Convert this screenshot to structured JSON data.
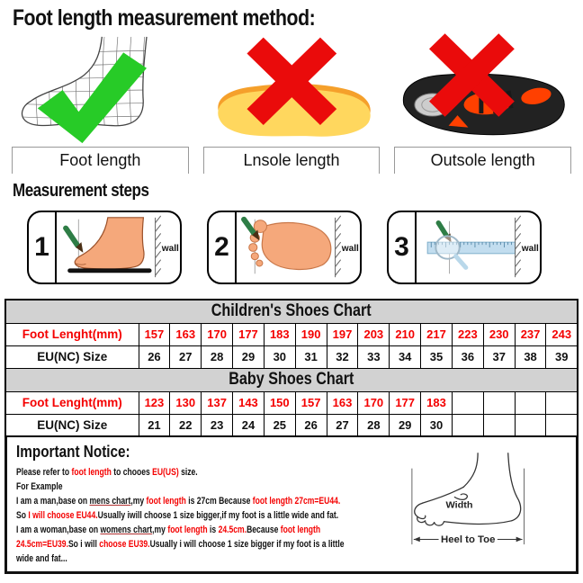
{
  "page": {
    "title": "Foot length measurement method:",
    "steps_heading": "Measurement steps"
  },
  "method_panels": [
    {
      "label": "Foot length",
      "mark": "green-check"
    },
    {
      "label": "Lnsole length",
      "mark": "red-x"
    },
    {
      "label": "Outsole length",
      "mark": "red-x"
    }
  ],
  "steps": [
    {
      "number": "1",
      "wall_label": "wall"
    },
    {
      "number": "2",
      "wall_label": "wall"
    },
    {
      "number": "3",
      "wall_label": "wall"
    }
  ],
  "charts": [
    {
      "title": "Children's Shoes Chart",
      "rows": [
        {
          "header": "Foot Lenght(mm)",
          "red": true,
          "values": [
            "157",
            "163",
            "170",
            "177",
            "183",
            "190",
            "197",
            "203",
            "210",
            "217",
            "223",
            "230",
            "237",
            "243"
          ]
        },
        {
          "header": "EU(NC) Size",
          "red": false,
          "values": [
            "26",
            "27",
            "28",
            "29",
            "30",
            "31",
            "32",
            "33",
            "34",
            "35",
            "36",
            "37",
            "38",
            "39"
          ]
        }
      ]
    },
    {
      "title": "Baby Shoes Chart",
      "rows": [
        {
          "header": "Foot Lenght(mm)",
          "red": true,
          "values": [
            "123",
            "130",
            "137",
            "143",
            "150",
            "157",
            "163",
            "170",
            "177",
            "183",
            "",
            "",
            "",
            ""
          ]
        },
        {
          "header": "EU(NC) Size",
          "red": false,
          "values": [
            "21",
            "22",
            "23",
            "24",
            "25",
            "26",
            "27",
            "28",
            "29",
            "30",
            "",
            "",
            "",
            ""
          ]
        }
      ]
    }
  ],
  "notice": {
    "heading": "Important Notice:",
    "lines": [
      [
        {
          "t": "Please refer to "
        },
        {
          "t": "foot length",
          "red": true
        },
        {
          "t": " to chooes "
        },
        {
          "t": "EU(US)",
          "red": true
        },
        {
          "t": " size."
        }
      ],
      [
        {
          "t": "For Example"
        }
      ],
      [
        {
          "t": "I am a man,base on "
        },
        {
          "t": "mens chart",
          "u": true
        },
        {
          "t": ",my "
        },
        {
          "t": "foot length",
          "red": true
        },
        {
          "t": " is 27cm Because "
        },
        {
          "t": "foot length 27cm=EU44.",
          "red": true
        }
      ],
      [
        {
          "t": "So "
        },
        {
          "t": "I will choose EU44.",
          "red": true
        },
        {
          "t": "Usually iwill choose 1 size bigger,if my foot is a little wide and fat."
        }
      ],
      [
        {
          "t": "I am a woman,base on "
        },
        {
          "t": "womens chart",
          "u": true
        },
        {
          "t": ",my "
        },
        {
          "t": "foot length",
          "red": true
        },
        {
          "t": " is "
        },
        {
          "t": "24.5cm.",
          "red": true
        },
        {
          "t": "Because "
        },
        {
          "t": "foot length",
          "red": true
        }
      ],
      [
        {
          "t": "24.5cm=EU39.",
          "red": true
        },
        {
          "t": "So i will "
        },
        {
          "t": "choose EU39.",
          "red": true
        },
        {
          "t": "Usually i will choose 1 size bigger if my foot is a little"
        }
      ],
      [
        {
          "t": "wide and fat..."
        }
      ]
    ]
  },
  "foot_diagram": {
    "width_label": "Width",
    "length_label": "Heel to Toe"
  },
  "colors": {
    "accent_red": "#f40000",
    "check_green": "#27cb27",
    "cross_red": "#ea0b0b",
    "table_header_bg": "#d2d2d2",
    "insole_yellow": "#ffd75e",
    "insole_orange": "#f5a02b",
    "outsole_orange": "#ff4000"
  }
}
